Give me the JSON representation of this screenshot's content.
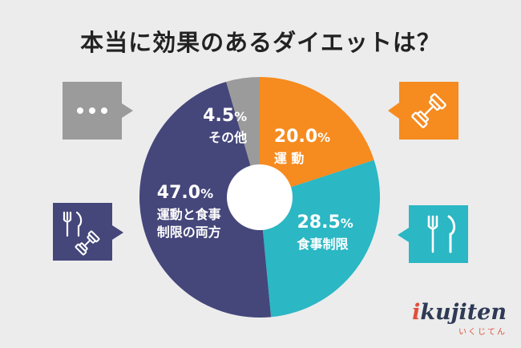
{
  "title": "本当に効果のあるダイエットは？",
  "chart_data": {
    "type": "pie",
    "title": "本当に効果のあるダイエットは？",
    "slices": [
      {
        "pct_main": "20.0",
        "pct_unit": "%",
        "label_lines": [
          "運 動"
        ],
        "value": 20.0,
        "color": "#f68b1f"
      },
      {
        "pct_main": "28.5",
        "pct_unit": "%",
        "label_lines": [
          "食事制限"
        ],
        "value": 28.5,
        "color": "#2bb7c4"
      },
      {
        "pct_main": "47.0",
        "pct_unit": "%",
        "label_lines": [
          "運動と食事",
          "制限の両方"
        ],
        "value": 47.0,
        "color": "#45467a"
      },
      {
        "pct_main": "4.5",
        "pct_unit": "%",
        "label_lines": [
          "その他"
        ],
        "value": 4.5,
        "color": "#9b9b9b"
      }
    ]
  },
  "icons": [
    {
      "name": "ellipsis-icon",
      "color": "#9b9b9b"
    },
    {
      "name": "dumbbell-icon",
      "color": "#f68b1f"
    },
    {
      "name": "fork-knife-icon",
      "color": "#2bb7c4"
    },
    {
      "name": "fork-knife-dumbbell-icon",
      "color": "#45467a"
    }
  ],
  "logo": {
    "main_prefix": "i",
    "main_rest": "kujiten",
    "sub": "いくじてん"
  }
}
